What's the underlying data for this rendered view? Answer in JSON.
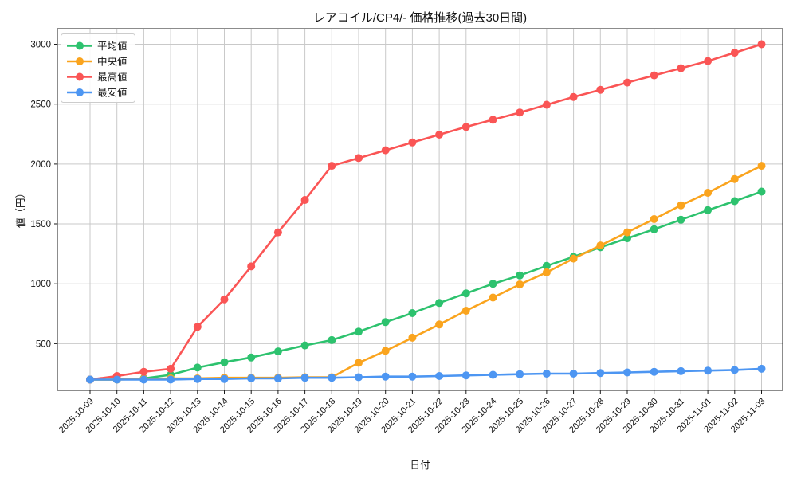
{
  "chart_data": {
    "type": "line",
    "title": "レアコイル/CP4/- 価格推移(過去30日間)",
    "xlabel": "日付",
    "ylabel": "値（円）",
    "legend_position": "upper left",
    "grid": true,
    "grid_color": "#c9c9c9",
    "x_tick_rotation": 45,
    "ylim": [
      110,
      3130
    ],
    "yticks": [
      500,
      1000,
      1500,
      2000,
      2500,
      3000
    ],
    "x": [
      "2025-10-09",
      "2025-10-10",
      "2025-10-11",
      "2025-10-12",
      "2025-10-13",
      "2025-10-14",
      "2025-10-15",
      "2025-10-16",
      "2025-10-17",
      "2025-10-18",
      "2025-10-19",
      "2025-10-20",
      "2025-10-21",
      "2025-10-22",
      "2025-10-23",
      "2025-10-24",
      "2025-10-25",
      "2025-10-26",
      "2025-10-27",
      "2025-10-28",
      "2025-10-29",
      "2025-10-30",
      "2025-10-31",
      "2025-11-01",
      "2025-11-02",
      "2025-11-03"
    ],
    "series": [
      {
        "key": "average",
        "name": "平均値",
        "color": "#2dc26e",
        "values": [
          200,
          200,
          210,
          240,
          300,
          345,
          385,
          435,
          485,
          530,
          600,
          680,
          755,
          840,
          920,
          1000,
          1070,
          1150,
          1225,
          1305,
          1380,
          1455,
          1535,
          1615,
          1690,
          1770
        ]
      },
      {
        "key": "median",
        "name": "中央値",
        "color": "#faa41e",
        "values": [
          200,
          200,
          205,
          210,
          210,
          215,
          215,
          215,
          220,
          220,
          340,
          440,
          550,
          660,
          775,
          885,
          995,
          1095,
          1210,
          1320,
          1430,
          1540,
          1655,
          1760,
          1875,
          1985
        ]
      },
      {
        "key": "max",
        "name": "最高値",
        "color": "#fa5555",
        "values": [
          200,
          230,
          265,
          290,
          640,
          870,
          1145,
          1430,
          1700,
          1985,
          2050,
          2115,
          2180,
          2245,
          2310,
          2370,
          2430,
          2495,
          2560,
          2620,
          2680,
          2740,
          2800,
          2860,
          2930,
          3000
        ]
      },
      {
        "key": "min",
        "name": "最安値",
        "color": "#4d96f2",
        "values": [
          200,
          200,
          200,
          200,
          205,
          205,
          210,
          210,
          215,
          215,
          220,
          225,
          225,
          230,
          235,
          240,
          245,
          250,
          250,
          255,
          260,
          265,
          270,
          275,
          280,
          290
        ]
      }
    ]
  }
}
